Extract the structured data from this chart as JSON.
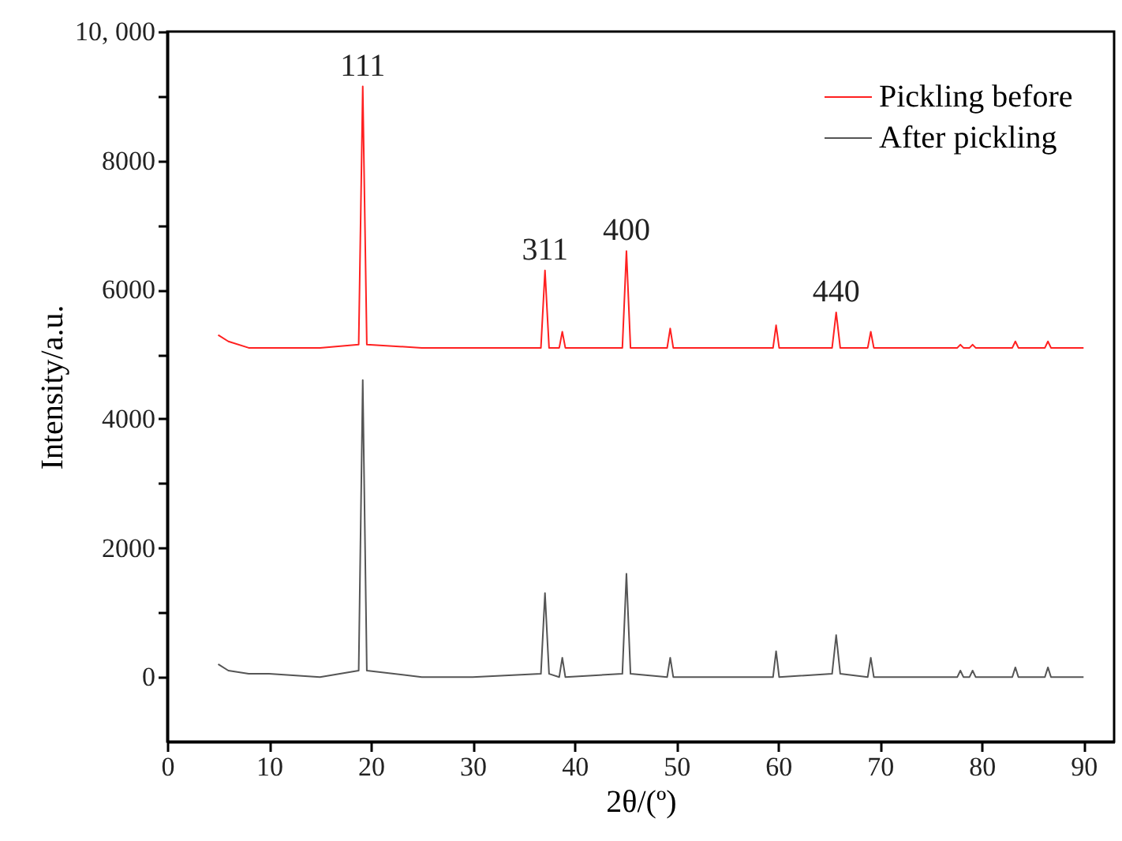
{
  "chart_data": {
    "type": "line",
    "xlabel": "2θ/(º)",
    "ylabel": "Intensity/a.u.",
    "x": [
      5,
      6,
      8,
      10,
      15,
      18.8,
      19.2,
      19.6,
      25,
      30,
      36.7,
      37.1,
      37.5,
      38.5,
      38.8,
      39.1,
      44.7,
      45.1,
      45.5,
      49.1,
      49.4,
      49.7,
      59.5,
      59.8,
      60.1,
      65.3,
      65.7,
      66.1,
      68.8,
      69.1,
      69.4,
      77.6,
      77.9,
      78.2,
      78.8,
      79.1,
      79.4,
      83,
      83.3,
      83.6,
      86.2,
      86.5,
      86.8,
      90
    ],
    "series": [
      {
        "name": "Pickling before",
        "color": "#ff2020",
        "values": [
          5300,
          5200,
          5100,
          5100,
          5100,
          5150,
          9150,
          5150,
          5100,
          5100,
          5100,
          6300,
          5100,
          5100,
          5350,
          5100,
          5100,
          6600,
          5100,
          5100,
          5400,
          5100,
          5100,
          5450,
          5100,
          5100,
          5650,
          5100,
          5100,
          5350,
          5100,
          5100,
          5150,
          5100,
          5100,
          5150,
          5100,
          5100,
          5200,
          5100,
          5100,
          5200,
          5100,
          5100
        ]
      },
      {
        "name": "After pickling",
        "color": "#555555",
        "values": [
          200,
          100,
          50,
          50,
          0,
          100,
          4600,
          100,
          0,
          0,
          50,
          1300,
          50,
          0,
          300,
          0,
          50,
          1600,
          50,
          0,
          300,
          0,
          0,
          400,
          0,
          50,
          650,
          50,
          0,
          300,
          0,
          0,
          100,
          0,
          0,
          100,
          0,
          0,
          150,
          0,
          0,
          150,
          0,
          0
        ]
      }
    ],
    "annotations": [
      {
        "text": "111",
        "x": 19.2,
        "y": 9150
      },
      {
        "text": "311",
        "x": 37.1,
        "y": 6300
      },
      {
        "text": "400",
        "x": 45.1,
        "y": 6600
      },
      {
        "text": "440",
        "x": 65.7,
        "y": 5650
      }
    ],
    "xlim": [
      0,
      93
    ],
    "xticks": [
      0,
      10,
      20,
      30,
      40,
      50,
      60,
      70,
      80,
      90
    ],
    "ylim": [
      -1000,
      10000
    ],
    "yticks": [
      0,
      {
        "value": 1000,
        "label": null
      },
      2000,
      {
        "value": 3000,
        "label": null
      },
      4000,
      {
        "value": 5000,
        "label": null
      },
      6000,
      {
        "value": 7000,
        "label": null
      },
      8000,
      {
        "value": 9000,
        "label": null
      },
      {
        "value": 10000,
        "label": "10, 000"
      }
    ],
    "grid": false,
    "legend": "top right",
    "marker": "none",
    "line_style": "solid"
  }
}
